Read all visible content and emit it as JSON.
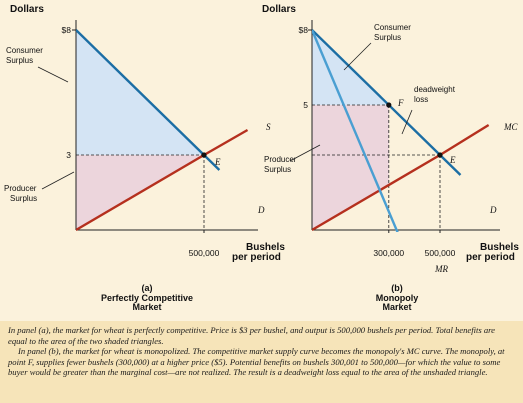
{
  "chart_data": [
    {
      "type": "line",
      "panel_label": "(a)",
      "title": "Perfectly Competitive Market",
      "title_lines": [
        "Perfectly Competitive",
        "Market"
      ],
      "ylabel": "Dollars",
      "xlabel_lines": [
        "Bushels",
        "per period"
      ],
      "y_ticks": [
        "$8",
        "3"
      ],
      "x_ticks": [
        "500,000"
      ],
      "series": [
        {
          "name": "D",
          "points": [
            [
              0,
              8
            ],
            [
              500000,
              3
            ],
            [
              560000,
              2.4
            ]
          ]
        },
        {
          "name": "S",
          "points": [
            [
              0,
              0
            ],
            [
              500000,
              3
            ],
            [
              670000,
              4
            ]
          ]
        }
      ],
      "points": [
        {
          "name": "E",
          "x": 500000,
          "y": 3
        }
      ],
      "regions": [
        {
          "label_lines": [
            "Consumer",
            "Surplus"
          ],
          "vertices": [
            [
              0,
              8
            ],
            [
              0,
              3
            ],
            [
              500000,
              3
            ]
          ],
          "color": "#d4e4f4"
        },
        {
          "label_lines": [
            "Producer",
            "Surplus"
          ],
          "vertices": [
            [
              0,
              3
            ],
            [
              0,
              0
            ],
            [
              500000,
              3
            ]
          ],
          "color": "#ecd5dc"
        }
      ]
    },
    {
      "type": "line",
      "panel_label": "(b)",
      "title": "Monopoly Market",
      "title_lines": [
        "Monopoly",
        "Market"
      ],
      "ylabel": "Dollars",
      "xlabel_lines": [
        "Bushels",
        "per period"
      ],
      "y_ticks": [
        "$8",
        "5"
      ],
      "x_ticks": [
        "300,000",
        "500,000"
      ],
      "series": [
        {
          "name": "D",
          "points": [
            [
              0,
              8
            ],
            [
              500000,
              3
            ],
            [
              580000,
              2.2
            ]
          ]
        },
        {
          "name": "MC",
          "points": [
            [
              0,
              0
            ],
            [
              500000,
              3
            ],
            [
              690000,
              4.2
            ]
          ]
        },
        {
          "name": "MR",
          "points": [
            [
              0,
              8
            ],
            [
              380000,
              -1.2
            ]
          ]
        }
      ],
      "points": [
        {
          "name": "F",
          "x": 300000,
          "y": 5
        },
        {
          "name": "E",
          "x": 500000,
          "y": 3
        }
      ],
      "regions": [
        {
          "label_lines": [
            "Consumer",
            "Surplus"
          ],
          "vertices": [
            [
              0,
              8
            ],
            [
              0,
              5
            ],
            [
              300000,
              5
            ]
          ],
          "color": "#d4e4f4"
        },
        {
          "label_lines": [
            "Producer",
            "Surplus"
          ],
          "vertices": [
            [
              0,
              5
            ],
            [
              0,
              0
            ],
            [
              300000,
              1.8
            ],
            [
              300000,
              5
            ]
          ],
          "color": "#ecd5dc"
        },
        {
          "label_lines": [
            "deadweight",
            "loss"
          ],
          "vertices": [
            [
              300000,
              5
            ],
            [
              300000,
              1.8
            ],
            [
              500000,
              3
            ]
          ],
          "color": "none"
        }
      ]
    }
  ],
  "caption": {
    "paragraph1": "In panel (a), the market for wheat is perfectly competitive. Price is $3 per bushel, and output is 500,000 bushels per period. Total benefits are equal to the area of the two shaded triangles.",
    "paragraph2": "In panel (b), the market for wheat is monopolized. The competitive market supply curve becomes the monopoly's MC curve. The monopoly, at point F, supplies fewer bushels (300,000) at a higher price ($5). Potential benefits on bushels 300,001 to 500,000—for which the value to some buyer would be greater than the marginal cost—are not realized. The result is a deadweight loss equal to the area of the unshaded triangle."
  },
  "colors": {
    "demand": "#1c6ea4",
    "supply": "#b5301e",
    "mr": "#4a9fd2",
    "consumer_fill": "#d4e4f4",
    "producer_fill": "#ecd5dc",
    "background": "#fbf2dc",
    "caption_bg": "#f6e4b9"
  }
}
